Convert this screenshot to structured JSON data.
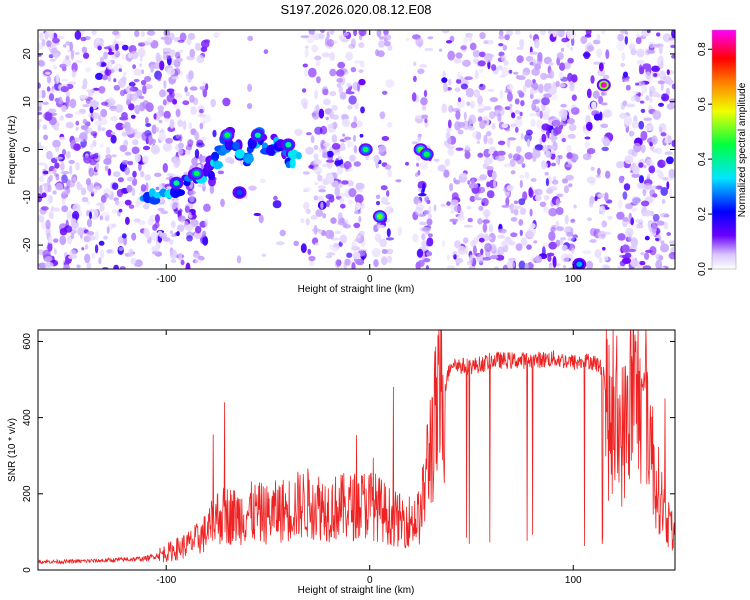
{
  "title": "S197.2026.020.08.12.E08",
  "chart_data": [
    {
      "type": "heatmap",
      "xlabel": "Height of straight line (km)",
      "ylabel": "Frequency (Hz)",
      "xlim": [
        -163,
        150
      ],
      "ylim": [
        -25,
        25
      ],
      "x_ticks": [
        -100,
        0,
        100
      ],
      "y_ticks": [
        20,
        10,
        0,
        -10,
        -20
      ],
      "colorbar": {
        "label": "Normalized spectral amplitude",
        "range": [
          0.0,
          0.87
        ],
        "ticks": [
          0.0,
          0.2,
          0.4,
          0.6,
          0.8
        ],
        "colormap": [
          "#ffffff",
          "#5a00ff",
          "#0000ff",
          "#00ffff",
          "#00ff00",
          "#ffff00",
          "#ff8000",
          "#ff0000",
          "#ff00ff"
        ]
      },
      "data_gaps_km": [
        [
          -80,
          -32
        ],
        [
          -3,
          3
        ],
        [
          10,
          22
        ],
        [
          30,
          36
        ],
        [
          101,
          106
        ],
        [
          118,
          123
        ]
      ],
      "signal_track": {
        "x": [
          -110,
          -100,
          -90,
          -80,
          -75,
          -70,
          -65,
          -60,
          -55,
          -50,
          -45,
          -40,
          -35
        ],
        "y": [
          -11,
          -9,
          -7,
          -4.5,
          -1.5,
          3,
          0,
          -2,
          3,
          -1,
          2,
          -2,
          -2
        ]
      },
      "hot_spots": [
        {
          "x": -70,
          "y": 3,
          "value": 0.45
        },
        {
          "x": -55,
          "y": 3,
          "value": 0.4
        },
        {
          "x": -40,
          "y": 1,
          "value": 0.4
        },
        {
          "x": -85,
          "y": -5,
          "value": 0.45
        },
        {
          "x": -95,
          "y": -7,
          "value": 0.4
        },
        {
          "x": -64,
          "y": -9,
          "value": 0.25
        },
        {
          "x": -2,
          "y": 0,
          "value": 0.45
        },
        {
          "x": 5,
          "y": -14,
          "value": 0.5
        },
        {
          "x": 25,
          "y": 0,
          "value": 0.5
        },
        {
          "x": 28,
          "y": -1,
          "value": 0.45
        },
        {
          "x": 115,
          "y": 13.5,
          "value": 0.85
        },
        {
          "x": 103,
          "y": -24,
          "value": 0.3
        }
      ]
    },
    {
      "type": "line",
      "xlabel": "Height of straight line (km)",
      "ylabel": "SNR (10 * v/v)",
      "xlim": [
        -163,
        150
      ],
      "ylim": [
        0,
        630
      ],
      "x_ticks": [
        -100,
        0,
        100
      ],
      "y_ticks": [
        0,
        200,
        400,
        600
      ],
      "color": "#ee2222",
      "series": [
        {
          "x": [
            -163,
            -150,
            -130,
            -110,
            -100,
            -90,
            -85,
            -80,
            -75,
            -70,
            -65,
            -60,
            -55,
            -50,
            -45,
            -40,
            -35,
            -30,
            -25,
            -20,
            -15,
            -10,
            -5,
            0,
            5,
            10,
            15,
            20,
            25,
            30,
            35,
            40,
            45,
            50,
            55,
            60,
            70,
            80,
            90,
            100,
            105,
            108,
            112,
            115,
            118,
            122,
            125,
            128,
            132,
            135,
            140,
            145,
            150
          ],
          "y": [
            22,
            22,
            25,
            30,
            45,
            65,
            80,
            100,
            140,
            145,
            140,
            150,
            150,
            145,
            155,
            160,
            170,
            175,
            170,
            160,
            165,
            165,
            170,
            175,
            160,
            140,
            130,
            130,
            140,
            340,
            440,
            545,
            535,
            535,
            540,
            550,
            550,
            550,
            555,
            545,
            545,
            550,
            540,
            520,
            360,
            360,
            360,
            450,
            450,
            500,
            250,
            150,
            80
          ]
        }
      ]
    }
  ]
}
